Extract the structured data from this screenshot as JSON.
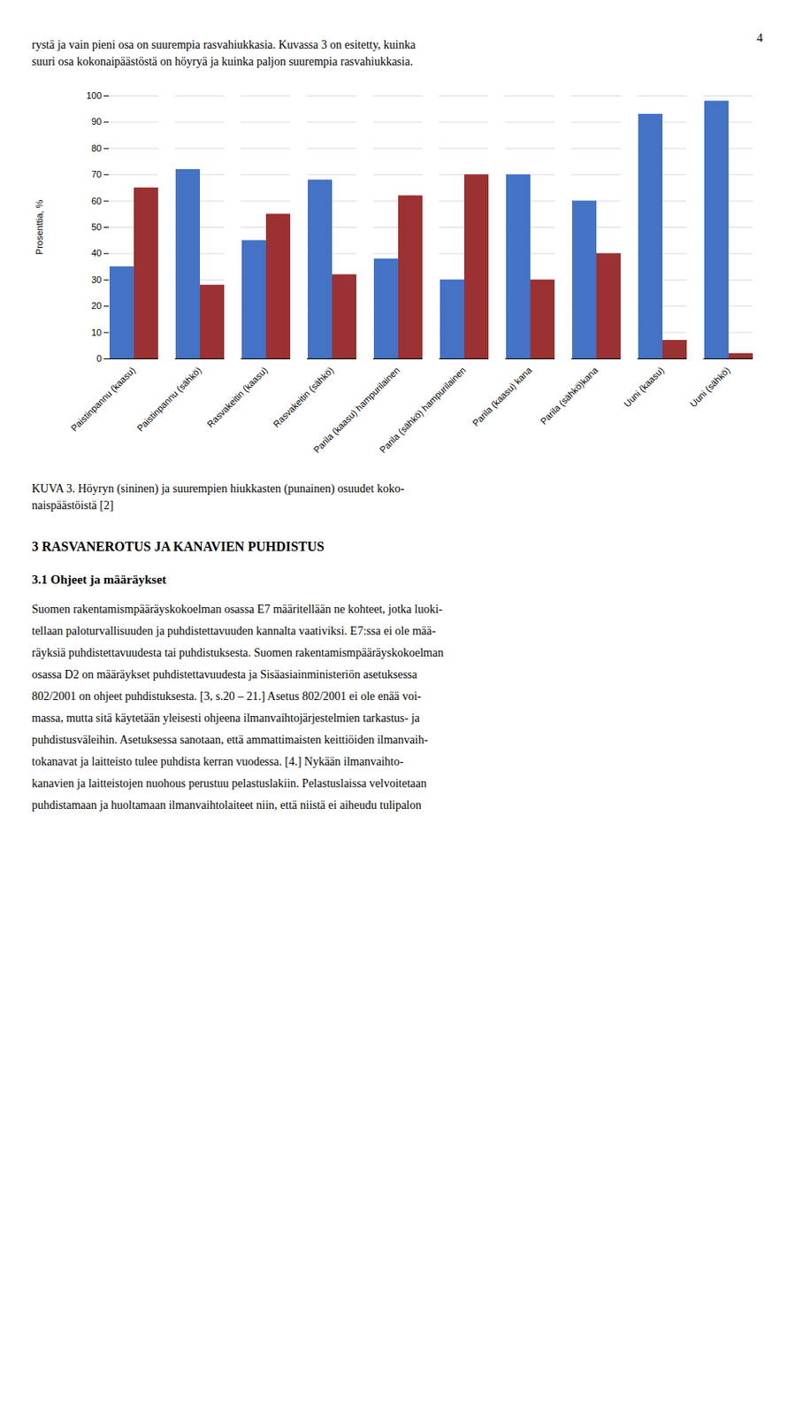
{
  "page_number": "4",
  "text_above": [
    "rystä ja vain pieni osa on suurempia rasvahiukkasia. Kuvassa 3 on esitetty, kuinka",
    "suuri osa kokonaipäästöstä on höyryä ja kuinka paljon suurempia rasvahiukkasia."
  ],
  "caption": [
    "KUVA 3. Höyryn (sininen) ja suurempien hiukkasten (punainen) osuudet koko-",
    "naispäästöistä [2]"
  ],
  "section_title": "3 RASVANEROTUS JA KANAVIEN PUHDISTUS",
  "subsection_title": "3.1  Ohjeet ja määräykset",
  "body_text": [
    "Suomen rakentamismpääräyskokoelman osassa E7 määritellään ne kohteet, jotka luoki-",
    "tellaan paloturvallisuuden ja puhdistettavuuden kannalta vaativiksi. E7:ssa ei ole mää-",
    "räyksiä puhdistettavuudesta tai puhdistuksesta. Suomen rakentamismpääräyskokoelman",
    "osassa D2 on määräykset puhdistettavuudesta ja Sisäasiainministeriön asetuksessa",
    "802/2001 on ohjeet puhdistuksesta. [3, s.20 – 21.] Asetus 802/2001 ei ole enää voi-",
    "massa, mutta sitä käytetään yleisesti ohjeena ilmanvaihtojärjestelmien tarkastus- ja",
    "puhdistusväleihin. Asetuksessa sanotaan, että ammattimaisten keittiöiden ilmanvaih-",
    "tokanavat ja laitteisto tulee puhdista kerran vuodessa. [4.] Nykään ilmanvaihto-",
    "kanavien ja laitteistojen nuohous perustuu pelastuslakiin. Pelastuslaissa velvoitetaan",
    "puhdistamaan ja huoltamaan ilmanvaihtolaiteet niin, että niistä ei aiheudu tulipalon"
  ],
  "chart_data": {
    "type": "bar",
    "ylabel": "Prosenttia, %",
    "categories": [
      "Paistinpannu (kaasu)",
      "Paistinpannu (sähkö)",
      "Rasvakeitin (kaasu)",
      "Rasvakeitin (sähkö)",
      "Parila (kaasu) hampurilainen",
      "Parila (sähkö) hampurilainen",
      "Parila (kaasu) kana",
      "Parila (sähkö)kana",
      "Uuni (kaasu)",
      "Uuni (sähkö)"
    ],
    "series": [
      {
        "color": "#4472C4",
        "values": [
          35,
          72,
          45,
          68,
          38,
          30,
          70,
          60,
          93,
          98
        ]
      },
      {
        "color": "#9B3132",
        "values": [
          65,
          28,
          55,
          32,
          62,
          70,
          30,
          40,
          7,
          2
        ]
      }
    ],
    "ylim": [
      0,
      100
    ],
    "yticks": [
      0,
      10,
      20,
      30,
      40,
      50,
      60,
      70,
      80,
      90,
      100
    ],
    "grid": true
  }
}
